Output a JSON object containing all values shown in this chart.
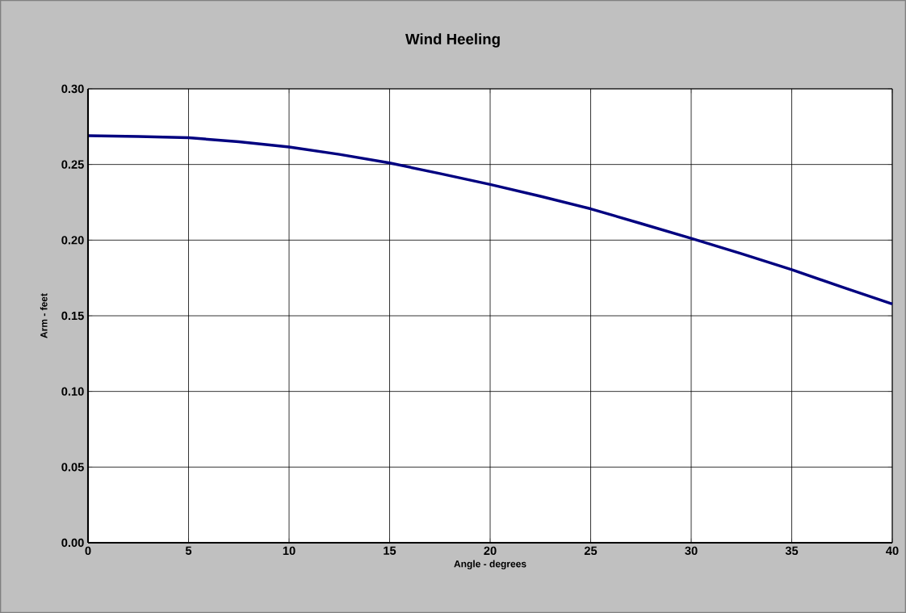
{
  "chart_data": {
    "type": "line",
    "title": "Wind Heeling",
    "xlabel": "Angle - degrees",
    "ylabel": "Arm - feet",
    "x": [
      0,
      2.5,
      5,
      7.5,
      10,
      12.5,
      15,
      17.5,
      20,
      22.5,
      25,
      27.5,
      30,
      32.5,
      35,
      37.5,
      40
    ],
    "values": [
      0.269,
      0.2685,
      0.2677,
      0.265,
      0.2616,
      0.2567,
      0.251,
      0.244,
      0.2368,
      0.229,
      0.2207,
      0.211,
      0.2012,
      0.191,
      0.1805,
      0.169,
      0.1578
    ],
    "color": "#000080",
    "xlim": [
      0,
      40
    ],
    "ylim": [
      0,
      0.3
    ],
    "xticks": [
      0,
      5,
      10,
      15,
      20,
      25,
      30,
      35,
      40
    ],
    "yticks": [
      {
        "value": 0,
        "label": "0.00"
      },
      {
        "value": 0.05,
        "label": "0.05"
      },
      {
        "value": 0.1,
        "label": "0.10"
      },
      {
        "value": 0.15,
        "label": "0.15"
      },
      {
        "value": 0.2,
        "label": "0.20"
      },
      {
        "value": 0.25,
        "label": "0.25"
      },
      {
        "value": 0.3,
        "label": "0.30"
      }
    ],
    "grid": true
  }
}
